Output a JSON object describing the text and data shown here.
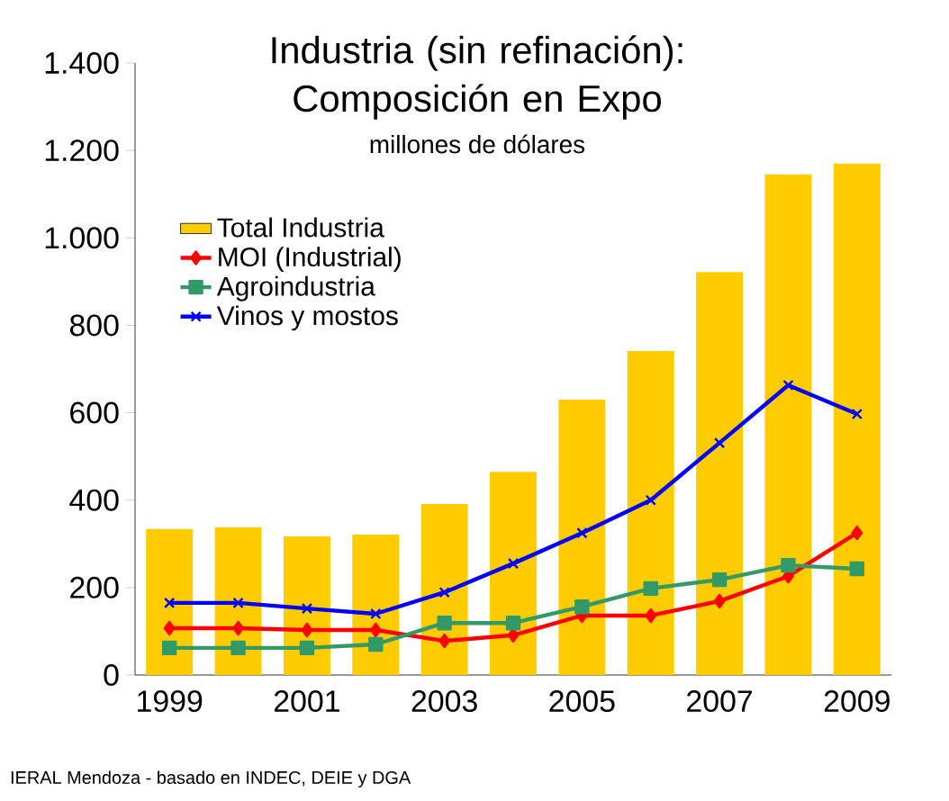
{
  "chart_data": {
    "type": "bar",
    "title": "Industria (sin refinación): Composición en Expo",
    "subtitle": "millones de dólares",
    "annotations": [
      "IERAL Mendoza - basado en INDEC, DEIE y DGA"
    ],
    "categories": [
      "1999",
      null,
      "2001",
      null,
      "2003",
      null,
      "2005",
      null,
      "2007",
      null,
      "2009"
    ],
    "series": [
      {
        "name": "Total Industria",
        "color": "#ffcc00",
        "values": [
          334,
          338,
          317,
          321,
          391,
          465,
          630,
          741,
          922,
          1145,
          1170
        ]
      },
      {
        "name": "MOI (Industrial)",
        "type": "line",
        "marker": "diamond",
        "color": "#ff0000",
        "values": [
          107,
          107,
          103,
          103,
          78,
          91,
          136,
          136,
          169,
          226,
          325
        ]
      },
      {
        "name": "Agroindustria",
        "type": "line",
        "marker": "square",
        "color": "#339966",
        "values": [
          62,
          62,
          62,
          70,
          119,
          119,
          156,
          198,
          218,
          251,
          243
        ]
      },
      {
        "name": "Vinos y mostos",
        "type": "line",
        "marker": "cross",
        "color": "#0000ff",
        "values": [
          165,
          165,
          152,
          140,
          189,
          255,
          325,
          400,
          531,
          663,
          597
        ]
      }
    ],
    "ylim": [
      0,
      1400
    ],
    "yticks": [
      {
        "value": 0,
        "label": "0"
      },
      {
        "value": 200,
        "label": "200"
      },
      {
        "value": 400,
        "label": "400"
      },
      {
        "value": 600,
        "label": "600"
      },
      {
        "value": 800,
        "label": "800"
      },
      {
        "value": 1000,
        "label": "1.000"
      },
      {
        "value": 1200,
        "label": "1.200"
      },
      {
        "value": 1400,
        "label": "1.400"
      }
    ],
    "legend": "top left",
    "grid": false,
    "line_style": "solid"
  }
}
